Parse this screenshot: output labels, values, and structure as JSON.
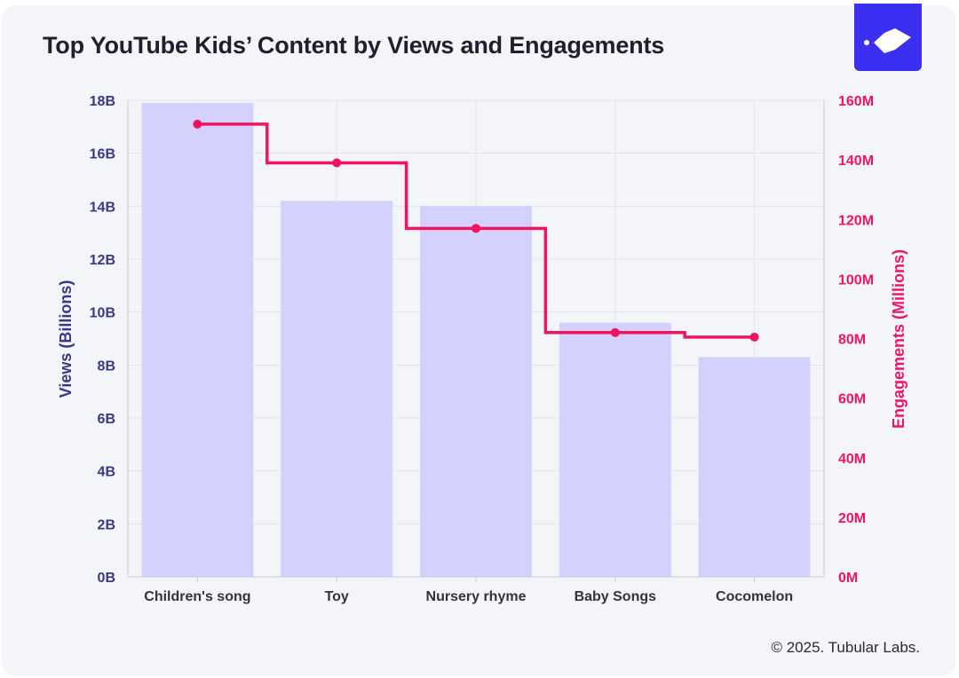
{
  "page": {
    "title": "Top YouTube Kids’ Content by Views and Engagements",
    "footer": "© 2025. Tubular Labs.",
    "logo_icon": "tubular-logo-icon"
  },
  "colors": {
    "bar": "#d4d0ff",
    "line": "#f0145f",
    "left_axis": "#3a3785",
    "right_axis": "#ef1566"
  },
  "chart_data": {
    "type": "bar",
    "categories": [
      "Children's song",
      "Toy",
      "Nursery rhyme",
      "Baby Songs",
      "Cocomelon"
    ],
    "series": [
      {
        "values": [
          17.9,
          14.2,
          14.0,
          9.6,
          8.3
        ],
        "axis": "left",
        "type": "bar"
      },
      {
        "values": [
          152,
          139,
          117,
          82,
          80.5
        ],
        "axis": "right",
        "type": "line",
        "step": "center"
      }
    ],
    "ylabel": "Views (Billions)",
    "y2label": "Engagements (Millions)",
    "ylim": [
      0,
      18
    ],
    "y2lim": [
      0,
      160
    ],
    "yticks": [
      "0B",
      "2B",
      "4B",
      "6B",
      "8B",
      "10B",
      "12B",
      "14B",
      "16B",
      "18B"
    ],
    "y2ticks": [
      "0M",
      "20M",
      "40M",
      "60M",
      "80M",
      "100M",
      "120M",
      "140M",
      "160M"
    ],
    "grid": true,
    "legend": "none"
  }
}
